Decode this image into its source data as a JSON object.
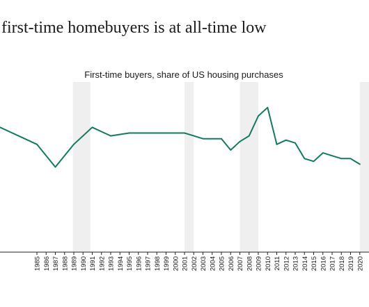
{
  "headline": "f first-time homebuyers is at all-time low",
  "chart_data": {
    "type": "line",
    "title": "First-time buyers, share of US housing purchases",
    "xlabel": "",
    "ylabel": "",
    "xlim": [
      1981,
      2021
    ],
    "ylim": [
      0,
      60
    ],
    "grid": false,
    "y_axis_visible": false,
    "x": [
      1981,
      1985,
      1987,
      1989,
      1991,
      1993,
      1995,
      1996,
      1997,
      1998,
      1999,
      2000,
      2001,
      2002,
      2003,
      2004,
      2005,
      2006,
      2007,
      2008,
      2009,
      2010,
      2011,
      2012,
      2013,
      2014,
      2015,
      2016,
      2017,
      2018,
      2019,
      2020
    ],
    "series": [
      {
        "color": "#0f7b5f",
        "values": [
          44,
          38,
          30,
          38,
          44,
          41,
          42,
          42,
          42,
          42,
          42,
          42,
          42,
          41,
          40,
          40,
          40,
          36,
          39,
          41,
          48,
          51,
          38,
          39.5,
          38.5,
          33,
          32,
          35,
          34,
          33,
          33,
          31
        ]
      }
    ],
    "shaded_periods": [
      {
        "start": 1988.9,
        "end": 1990.8,
        "color": "#efefef"
      },
      {
        "start": 2001.0,
        "end": 2002.0,
        "color": "#efefef"
      },
      {
        "start": 2007.0,
        "end": 2009.0,
        "color": "#efefef"
      },
      {
        "start": 2020.0,
        "end": 2021.0,
        "color": "#efefef"
      }
    ],
    "x_tick_labels": [
      "1985",
      "1986",
      "1987",
      "1988",
      "1989",
      "1990",
      "1991",
      "1992",
      "1993",
      "1994",
      "1995",
      "1996",
      "1997",
      "1998",
      "1999",
      "2000",
      "2001",
      "2002",
      "2003",
      "2004",
      "2005",
      "2006",
      "2007",
      "2008",
      "2009",
      "2010",
      "2011",
      "2012",
      "2013",
      "2014",
      "2015",
      "2016",
      "2017",
      "2018",
      "2019",
      "2020"
    ],
    "axis_color": "#222222"
  }
}
